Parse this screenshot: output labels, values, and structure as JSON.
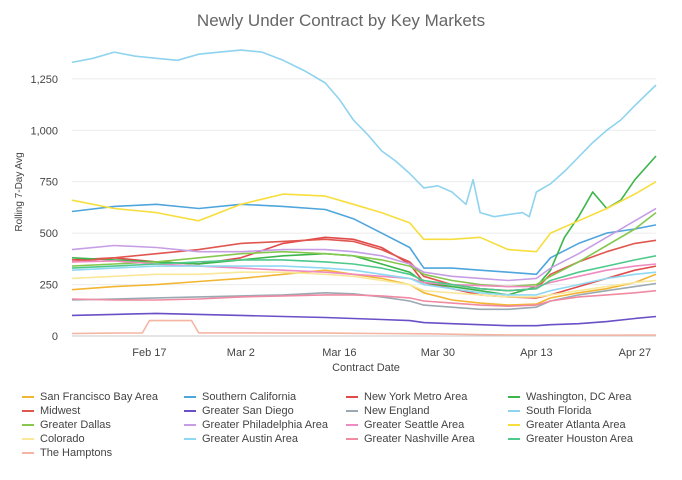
{
  "chart_data": {
    "type": "line",
    "title": "Newly Under Contract by Key Markets",
    "xlabel": "Contract Date",
    "ylabel": "Rolling 7-Day Avg",
    "ylim": [
      0,
      1400
    ],
    "yticks": [
      0,
      250,
      500,
      750,
      1000,
      1250
    ],
    "ytick_labels": [
      "0",
      "250",
      "500",
      "750",
      "1,000",
      "1,250"
    ],
    "xlim": [
      0,
      83
    ],
    "xticks": [
      11,
      24,
      38,
      52,
      66,
      80
    ],
    "xtick_labels": [
      "Feb 17",
      "Mar 2",
      "Mar 16",
      "Mar 30",
      "Apr 13",
      "Apr 27"
    ],
    "grid": "horizontal",
    "legend_position": "bottom",
    "series": [
      {
        "name": "San Francisco Bay Area",
        "color": "#f2b632",
        "x": [
          0,
          6,
          12,
          18,
          24,
          30,
          36,
          40,
          44,
          48,
          50,
          54,
          58,
          62,
          66,
          68,
          72,
          76,
          80,
          83
        ],
        "values": [
          225,
          240,
          250,
          265,
          280,
          300,
          320,
          300,
          280,
          250,
          210,
          175,
          160,
          150,
          155,
          185,
          210,
          230,
          260,
          300
        ]
      },
      {
        "name": "Southern California",
        "color": "#4fa6dc",
        "x": [
          0,
          6,
          12,
          18,
          24,
          30,
          36,
          40,
          44,
          48,
          50,
          54,
          58,
          62,
          66,
          68,
          72,
          76,
          80,
          83
        ],
        "values": [
          605,
          630,
          640,
          620,
          640,
          630,
          615,
          570,
          500,
          430,
          330,
          330,
          320,
          310,
          300,
          380,
          450,
          500,
          520,
          540
        ]
      },
      {
        "name": "New York Metro Area",
        "color": "#e24a4a",
        "x": [
          0,
          6,
          12,
          18,
          24,
          30,
          36,
          40,
          44,
          48,
          50,
          54,
          58,
          62,
          66,
          68,
          72,
          76,
          80,
          83
        ],
        "values": [
          370,
          380,
          360,
          350,
          380,
          450,
          480,
          470,
          430,
          350,
          260,
          230,
          200,
          190,
          185,
          200,
          240,
          280,
          320,
          340
        ]
      },
      {
        "name": "Washington, DC Area",
        "color": "#3cb54a",
        "x": [
          0,
          6,
          12,
          18,
          24,
          30,
          36,
          40,
          44,
          48,
          50,
          54,
          58,
          62,
          66,
          68,
          70,
          72,
          74,
          76,
          78,
          80,
          83
        ],
        "values": [
          380,
          370,
          360,
          350,
          370,
          390,
          400,
          390,
          350,
          310,
          260,
          240,
          220,
          200,
          240,
          320,
          480,
          580,
          700,
          620,
          660,
          760,
          875
        ]
      },
      {
        "name": "Midwest",
        "color": "#e0574f",
        "x": [
          0,
          6,
          12,
          18,
          24,
          30,
          36,
          40,
          44,
          48,
          50,
          54,
          58,
          62,
          66,
          68,
          72,
          76,
          80,
          83
        ],
        "values": [
          360,
          380,
          400,
          420,
          450,
          460,
          470,
          460,
          420,
          360,
          290,
          250,
          230,
          220,
          230,
          300,
          360,
          410,
          450,
          465
        ]
      },
      {
        "name": "Greater San Diego",
        "color": "#6a4fc6",
        "x": [
          0,
          6,
          12,
          18,
          24,
          30,
          36,
          40,
          44,
          48,
          50,
          54,
          58,
          62,
          66,
          68,
          72,
          76,
          80,
          83
        ],
        "values": [
          100,
          105,
          110,
          105,
          100,
          95,
          90,
          85,
          80,
          75,
          65,
          60,
          55,
          50,
          50,
          55,
          60,
          70,
          85,
          95
        ]
      },
      {
        "name": "New England",
        "color": "#9aa9b2",
        "x": [
          0,
          6,
          12,
          18,
          24,
          30,
          36,
          40,
          44,
          48,
          50,
          54,
          58,
          62,
          66,
          68,
          72,
          76,
          80,
          83
        ],
        "values": [
          175,
          180,
          185,
          190,
          195,
          200,
          210,
          205,
          190,
          170,
          150,
          140,
          130,
          130,
          140,
          170,
          200,
          220,
          240,
          255
        ]
      },
      {
        "name": "South Florida",
        "color": "#8fd3ef",
        "x": [
          0,
          3,
          6,
          9,
          12,
          15,
          18,
          21,
          24,
          27,
          30,
          33,
          36,
          38,
          40,
          42,
          44,
          46,
          48,
          50,
          52,
          54,
          56,
          57,
          58,
          60,
          62,
          64,
          65,
          66,
          68,
          70,
          72,
          74,
          76,
          78,
          80,
          83
        ],
        "values": [
          1330,
          1350,
          1380,
          1360,
          1350,
          1340,
          1370,
          1380,
          1390,
          1380,
          1340,
          1290,
          1230,
          1150,
          1050,
          980,
          900,
          850,
          790,
          720,
          730,
          700,
          640,
          760,
          600,
          580,
          590,
          600,
          580,
          700,
          740,
          800,
          870,
          940,
          1000,
          1050,
          1120,
          1220
        ]
      },
      {
        "name": "Greater Dallas",
        "color": "#86c84f",
        "x": [
          0,
          6,
          12,
          18,
          24,
          30,
          36,
          40,
          44,
          48,
          50,
          54,
          58,
          62,
          66,
          68,
          72,
          76,
          80,
          83
        ],
        "values": [
          340,
          350,
          360,
          380,
          400,
          410,
          400,
          390,
          370,
          340,
          300,
          270,
          250,
          240,
          250,
          290,
          360,
          440,
          520,
          600
        ]
      },
      {
        "name": "Greater Philadelphia Area",
        "color": "#c79ee6",
        "x": [
          0,
          6,
          12,
          18,
          24,
          30,
          36,
          40,
          44,
          48,
          50,
          54,
          58,
          62,
          66,
          68,
          72,
          76,
          80,
          83
        ],
        "values": [
          420,
          440,
          430,
          410,
          410,
          420,
          420,
          410,
          390,
          350,
          310,
          290,
          280,
          270,
          280,
          330,
          400,
          480,
          560,
          620
        ]
      },
      {
        "name": "Greater Seattle Area",
        "color": "#ef8bc0",
        "x": [
          0,
          6,
          12,
          18,
          24,
          30,
          36,
          40,
          44,
          48,
          50,
          54,
          58,
          62,
          66,
          68,
          72,
          76,
          80,
          83
        ],
        "values": [
          360,
          365,
          350,
          340,
          330,
          320,
          310,
          300,
          290,
          280,
          260,
          250,
          245,
          240,
          240,
          260,
          290,
          320,
          340,
          350
        ]
      },
      {
        "name": "Greater Atlanta Area",
        "color": "#f7de3c",
        "x": [
          0,
          6,
          12,
          18,
          24,
          30,
          36,
          40,
          44,
          48,
          50,
          54,
          58,
          62,
          66,
          68,
          72,
          76,
          80,
          83
        ],
        "values": [
          660,
          620,
          600,
          560,
          640,
          690,
          680,
          640,
          600,
          550,
          470,
          470,
          480,
          420,
          410,
          500,
          560,
          620,
          690,
          750
        ]
      },
      {
        "name": "Colorado",
        "color": "#f9e79a",
        "x": [
          0,
          6,
          12,
          18,
          24,
          30,
          36,
          40,
          44,
          48,
          50,
          54,
          58,
          62,
          66,
          68,
          72,
          76,
          80,
          83
        ],
        "values": [
          280,
          290,
          300,
          300,
          310,
          310,
          300,
          290,
          270,
          250,
          220,
          210,
          200,
          190,
          190,
          200,
          220,
          240,
          260,
          270
        ]
      },
      {
        "name": "Greater Austin Area",
        "color": "#8fd8f2",
        "x": [
          0,
          6,
          12,
          18,
          24,
          30,
          36,
          40,
          44,
          48,
          50,
          54,
          58,
          62,
          66,
          68,
          72,
          76,
          80,
          83
        ],
        "values": [
          320,
          330,
          340,
          340,
          340,
          340,
          330,
          320,
          300,
          280,
          250,
          230,
          210,
          200,
          200,
          220,
          250,
          280,
          300,
          310
        ]
      },
      {
        "name": "Greater Nashville Area",
        "color": "#f08aa2",
        "x": [
          0,
          6,
          12,
          18,
          24,
          30,
          36,
          40,
          44,
          48,
          50,
          54,
          58,
          62,
          66,
          68,
          72,
          76,
          80,
          83
        ],
        "values": [
          180,
          175,
          175,
          180,
          190,
          195,
          200,
          200,
          195,
          185,
          170,
          160,
          150,
          145,
          150,
          170,
          190,
          200,
          210,
          220
        ]
      },
      {
        "name": "Greater Houston Area",
        "color": "#4ec98c",
        "x": [
          0,
          6,
          12,
          18,
          24,
          30,
          36,
          40,
          44,
          48,
          50,
          54,
          58,
          62,
          66,
          68,
          72,
          76,
          80,
          83
        ],
        "values": [
          330,
          340,
          350,
          360,
          370,
          370,
          360,
          350,
          330,
          300,
          270,
          250,
          230,
          220,
          230,
          270,
          310,
          340,
          370,
          390
        ]
      },
      {
        "name": "The Hamptons",
        "color": "#f5b5a3",
        "x": [
          0,
          6,
          10,
          11,
          16,
          17,
          18,
          24,
          30,
          36,
          40,
          44,
          48,
          52,
          56,
          60,
          66,
          72,
          76,
          80,
          83
        ],
        "values": [
          12,
          14,
          15,
          75,
          75,
          75,
          15,
          15,
          14,
          14,
          13,
          12,
          11,
          10,
          8,
          6,
          5,
          4,
          4,
          5,
          5
        ]
      }
    ]
  }
}
